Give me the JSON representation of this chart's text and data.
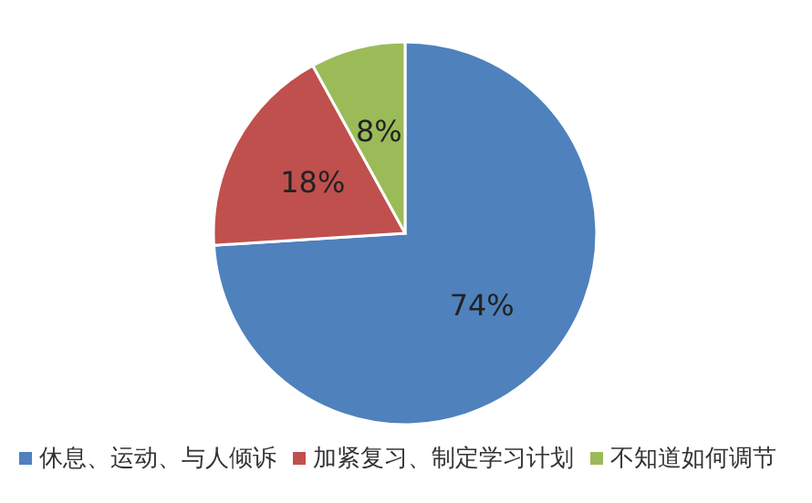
{
  "chart_data": {
    "type": "pie",
    "categories": [
      "休息、运动、与人倾诉",
      "加紧复习、制定学习计划",
      "不知道如何调节"
    ],
    "values": [
      74,
      18,
      8
    ],
    "value_labels": [
      "74%",
      "18%",
      "8%"
    ],
    "colors": [
      "#4f81bd",
      "#c0504d",
      "#9bbb59"
    ],
    "legend": "bottom"
  }
}
